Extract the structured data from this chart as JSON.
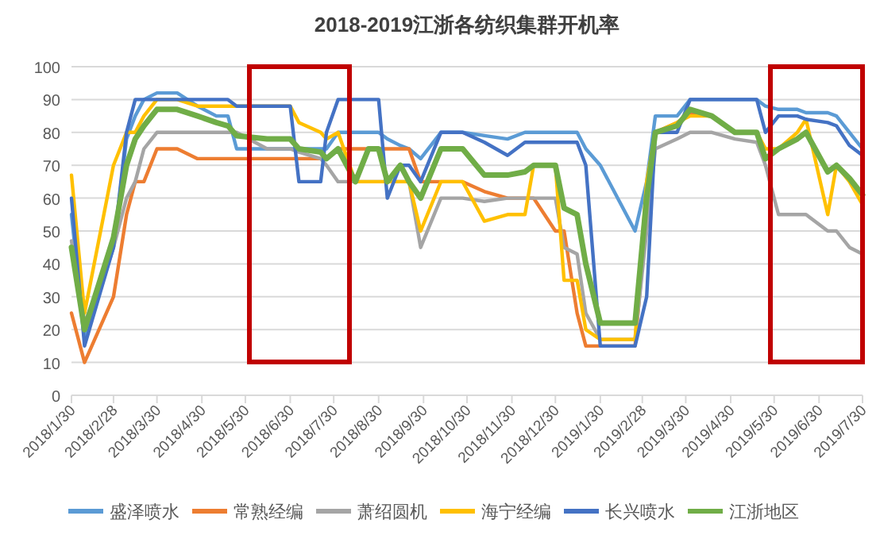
{
  "chart_data": {
    "type": "line",
    "title": "2018-2019江浙各纺织集群开机率",
    "x": [
      "2018-01-30",
      "2018-02-08",
      "2018-02-28",
      "2018-03-09",
      "2018-03-15",
      "2018-03-21",
      "2018-03-30",
      "2018-04-13",
      "2018-04-27",
      "2018-05-10",
      "2018-05-18",
      "2018-05-24",
      "2018-06-14",
      "2018-06-30",
      "2018-07-06",
      "2018-07-21",
      "2018-07-25",
      "2018-08-02",
      "2018-08-14",
      "2018-08-23",
      "2018-08-30",
      "2018-09-05",
      "2018-09-14",
      "2018-09-20",
      "2018-09-28",
      "2018-10-12",
      "2018-10-27",
      "2018-11-11",
      "2018-11-27",
      "2018-12-09",
      "2018-12-15",
      "2018-12-30",
      "2019-01-05",
      "2019-01-14",
      "2019-01-20",
      "2019-01-30",
      "2019-02-23",
      "2019-03-03",
      "2019-03-09",
      "2019-03-24",
      "2019-04-02",
      "2019-04-17",
      "2019-05-03",
      "2019-05-18",
      "2019-05-24",
      "2019-06-02",
      "2019-06-15",
      "2019-06-21",
      "2019-07-06",
      "2019-07-12",
      "2019-07-21",
      "2019-07-30"
    ],
    "series": [
      {
        "name": "盛泽喷水",
        "color": "#5b9bd5",
        "values": [
          55,
          17,
          45,
          78,
          85,
          90,
          92,
          92,
          88,
          85,
          85,
          75,
          75,
          75,
          75,
          75,
          75,
          80,
          80,
          80,
          80,
          78,
          76,
          75,
          72,
          80,
          80,
          79,
          78,
          80,
          80,
          80,
          80,
          80,
          75,
          70,
          50,
          65,
          85,
          85,
          90,
          90,
          90,
          90,
          88,
          87,
          87,
          86,
          86,
          85,
          80,
          75
        ]
      },
      {
        "name": "常熟经编",
        "color": "#ed7d31",
        "values": [
          25,
          10,
          30,
          55,
          65,
          65,
          75,
          75,
          72,
          72,
          72,
          72,
          72,
          72,
          72,
          72,
          72,
          75,
          75,
          75,
          75,
          75,
          75,
          75,
          65,
          65,
          65,
          62,
          60,
          60,
          60,
          50,
          50,
          25,
          15,
          15,
          15,
          55,
          80,
          83,
          86,
          85,
          null,
          null,
          null,
          null,
          null,
          null,
          null,
          null,
          null,
          null
        ]
      },
      {
        "name": "萧绍圆机",
        "color": "#a5a5a5",
        "values": [
          47,
          22,
          45,
          60,
          65,
          75,
          80,
          80,
          80,
          80,
          80,
          80,
          75,
          75,
          74,
          72,
          70,
          65,
          65,
          65,
          65,
          65,
          65,
          65,
          45,
          60,
          60,
          59,
          60,
          60,
          60,
          60,
          45,
          43,
          25,
          17,
          17,
          50,
          75,
          78,
          80,
          80,
          78,
          77,
          70,
          55,
          55,
          55,
          50,
          50,
          45,
          43
        ]
      },
      {
        "name": "海宁经编",
        "color": "#ffc000",
        "values": [
          67,
          25,
          70,
          80,
          80,
          85,
          90,
          90,
          88,
          88,
          88,
          88,
          88,
          88,
          83,
          80,
          78,
          80,
          65,
          65,
          65,
          65,
          65,
          65,
          50,
          65,
          65,
          53,
          55,
          55,
          70,
          70,
          35,
          35,
          20,
          17,
          17,
          65,
          80,
          83,
          85,
          85,
          80,
          80,
          75,
          75,
          80,
          84,
          55,
          70,
          65,
          58
        ]
      },
      {
        "name": "长兴喷水",
        "color": "#4472c4",
        "values": [
          60,
          15,
          45,
          80,
          90,
          90,
          90,
          90,
          90,
          90,
          90,
          88,
          88,
          88,
          65,
          65,
          80,
          90,
          90,
          90,
          90,
          60,
          70,
          70,
          65,
          80,
          80,
          77,
          73,
          77,
          77,
          77,
          77,
          77,
          70,
          15,
          15,
          30,
          80,
          80,
          90,
          90,
          90,
          90,
          80,
          85,
          85,
          84,
          83,
          82,
          76,
          73
        ]
      },
      {
        "name": "江浙地区",
        "color": "#70ad47",
        "values": [
          45,
          20,
          48,
          70,
          78,
          82,
          87,
          87,
          85,
          83,
          82,
          79,
          78,
          78,
          75,
          74,
          72,
          75,
          65,
          75,
          75,
          65,
          70,
          65,
          60,
          75,
          75,
          67,
          67,
          68,
          70,
          70,
          57,
          55,
          40,
          22,
          22,
          60,
          80,
          82,
          87,
          85,
          80,
          80,
          72,
          75,
          78,
          80,
          68,
          70,
          66,
          61
        ]
      }
    ],
    "xlim": [
      "2018-01-30",
      "2019-07-30"
    ],
    "xticks": [
      {
        "value": "2018-01-30",
        "label": "2018/1/30"
      },
      {
        "value": "2018-02-28",
        "label": "2018/2/28"
      },
      {
        "value": "2018-03-30",
        "label": "2018/3/30"
      },
      {
        "value": "2018-04-30",
        "label": "2018/4/30"
      },
      {
        "value": "2018-05-30",
        "label": "2018/5/30"
      },
      {
        "value": "2018-06-30",
        "label": "2018/6/30"
      },
      {
        "value": "2018-07-30",
        "label": "2018/7/30"
      },
      {
        "value": "2018-08-30",
        "label": "2018/8/30"
      },
      {
        "value": "2018-09-30",
        "label": "2018/9/30"
      },
      {
        "value": "2018-10-30",
        "label": "2018/10/30"
      },
      {
        "value": "2018-11-30",
        "label": "2018/11/30"
      },
      {
        "value": "2018-12-30",
        "label": "2018/12/30"
      },
      {
        "value": "2019-01-30",
        "label": "2019/1/30"
      },
      {
        "value": "2019-02-28",
        "label": "2019/2/28"
      },
      {
        "value": "2019-03-30",
        "label": "2019/3/30"
      },
      {
        "value": "2019-04-30",
        "label": "2019/4/30"
      },
      {
        "value": "2019-05-30",
        "label": "2019/5/30"
      },
      {
        "value": "2019-06-30",
        "label": "2019/6/30"
      },
      {
        "value": "2019-07-30",
        "label": "2019/7/30"
      }
    ],
    "ylim": [
      0,
      100
    ],
    "yticks": [
      0,
      10,
      20,
      30,
      40,
      50,
      60,
      70,
      80,
      90,
      100
    ],
    "grid": "y",
    "legend": "bottom"
  }
}
